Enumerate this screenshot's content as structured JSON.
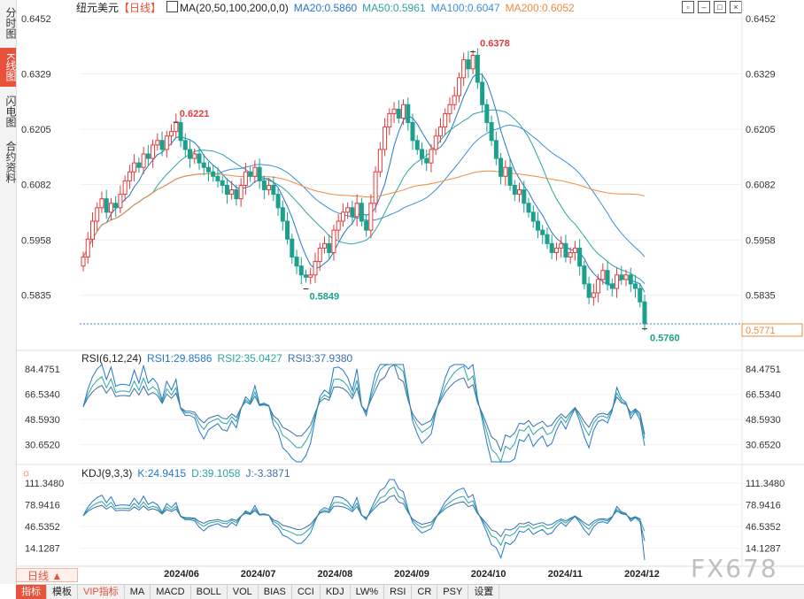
{
  "sidebar": {
    "tabs": [
      "分时图",
      "K线图",
      "闪电图",
      "合约资料"
    ],
    "active": 1
  },
  "header": {
    "symbol": "纽元美元",
    "period": "【日线】",
    "ma_label": "MA(20,50,100,200,0,0)",
    "ma20": "MA20:0.5860",
    "ma50": "MA50:0.5961",
    "ma100": "MA100:0.6047",
    "ma200": "MA200:0.6052"
  },
  "colors": {
    "up": "#e23b3b",
    "down": "#1ba08c",
    "ma20": "#2277cc",
    "ma50": "#2aa6a0",
    "ma100": "#3b8fd8",
    "ma200": "#f08a3c",
    "rsi1": "#2277cc",
    "rsi2": "#2aa6a0",
    "rsi3": "#3b6fa8"
  },
  "rsi": {
    "title": "RSI(6,12,24)",
    "rsi1": "RSI1:29.8586",
    "rsi2": "RSI2:35.0427",
    "rsi3": "RSI3:37.9380"
  },
  "kdj": {
    "title": "KDJ(9,3,3)",
    "k": "K:24.9415",
    "d": "D:39.1058",
    "j": "J:-3.3871"
  },
  "bottom": {
    "day_button": "日线 ▲",
    "tabs": [
      "指标",
      "模板",
      "VIP指标",
      "MA",
      "MACD",
      "BOLL",
      "VOL",
      "BIAS",
      "CCI",
      "KDJ",
      "LW%",
      "RSI",
      "CR",
      "PSY",
      "设置"
    ]
  },
  "watermark": "FX678",
  "chart_data": [
    {
      "type": "candlestick",
      "title": "纽元美元【日线】",
      "y_ticks": [
        "0.6452",
        "0.6329",
        "0.6205",
        "0.6082",
        "0.5958",
        "0.5835"
      ],
      "ylim": [
        0.5771,
        0.6452
      ],
      "x_ticks": [
        "2024/06",
        "2024/07",
        "2024/08",
        "2024/09",
        "2024/10",
        "2024/11",
        "2024/12"
      ],
      "annotations": [
        {
          "label": "0.6221"
        },
        {
          "label": "0.5849"
        },
        {
          "label": "0.6378"
        },
        {
          "label": "0.5760"
        }
      ],
      "current_price": "0.5771",
      "close_series": [
        0.592,
        0.596,
        0.6,
        0.603,
        0.605,
        0.602,
        0.604,
        0.603,
        0.606,
        0.609,
        0.611,
        0.613,
        0.612,
        0.615,
        0.614,
        0.617,
        0.618,
        0.616,
        0.619,
        0.62,
        0.622,
        0.618,
        0.616,
        0.614,
        0.615,
        0.613,
        0.612,
        0.611,
        0.61,
        0.609,
        0.608,
        0.606,
        0.607,
        0.605,
        0.608,
        0.611,
        0.61,
        0.612,
        0.609,
        0.607,
        0.608,
        0.606,
        0.603,
        0.6,
        0.596,
        0.592,
        0.59,
        0.588,
        0.5875,
        0.588,
        0.591,
        0.594,
        0.595,
        0.593,
        0.598,
        0.6,
        0.602,
        0.603,
        0.601,
        0.604,
        0.6,
        0.598,
        0.604,
        0.611,
        0.616,
        0.621,
        0.624,
        0.625,
        0.623,
        0.626,
        0.622,
        0.618,
        0.616,
        0.614,
        0.613,
        0.616,
        0.619,
        0.621,
        0.624,
        0.626,
        0.628,
        0.632,
        0.636,
        0.634,
        0.637,
        0.631,
        0.626,
        0.622,
        0.618,
        0.614,
        0.61,
        0.612,
        0.608,
        0.606,
        0.607,
        0.604,
        0.602,
        0.6,
        0.598,
        0.597,
        0.595,
        0.593,
        0.594,
        0.595,
        0.592,
        0.593,
        0.594,
        0.59,
        0.586,
        0.583,
        0.584,
        0.587,
        0.589,
        0.586,
        0.585,
        0.588,
        0.587,
        0.588,
        0.586,
        0.585,
        0.582,
        0.5771
      ],
      "ma20": 0.586,
      "ma50": 0.5961,
      "ma100": 0.6047,
      "ma200": 0.6052
    },
    {
      "type": "line",
      "title": "RSI(6,12,24)",
      "y_ticks": [
        "84.4751",
        "66.5340",
        "48.5930",
        "30.6520"
      ],
      "series": [
        {
          "name": "RSI1",
          "last": 29.8586
        },
        {
          "name": "RSI2",
          "last": 35.0427
        },
        {
          "name": "RSI3",
          "last": 37.938
        }
      ]
    },
    {
      "type": "line",
      "title": "KDJ(9,3,3)",
      "y_ticks": [
        "111.3480",
        "78.9416",
        "46.5352",
        "14.1287"
      ],
      "series": [
        {
          "name": "K",
          "last": 24.9415
        },
        {
          "name": "D",
          "last": 39.1058
        },
        {
          "name": "J",
          "last": -3.3871
        }
      ]
    }
  ]
}
